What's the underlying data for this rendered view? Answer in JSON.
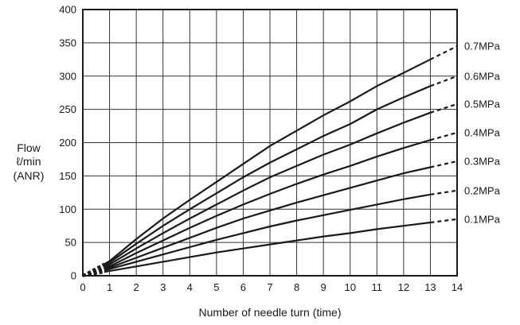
{
  "chart_data": {
    "type": "line",
    "title": "",
    "xlabel": "Number of needle turn (time)",
    "ylabel_lines": [
      "Flow",
      "ℓ/min",
      "(ANR)"
    ],
    "xlim": [
      0,
      14
    ],
    "ylim": [
      0,
      400
    ],
    "x_ticks": [
      0,
      1,
      2,
      3,
      4,
      5,
      6,
      7,
      8,
      9,
      10,
      11,
      12,
      13,
      14
    ],
    "y_ticks": [
      0,
      50,
      100,
      150,
      200,
      250,
      300,
      350,
      400
    ],
    "grid": true,
    "solid_x_range": [
      0.8,
      13
    ],
    "dashed_segments": "x 0–0.8 and x 13–14",
    "series": [
      {
        "name": "0.7MPa",
        "x": [
          0,
          1,
          2,
          3,
          4,
          5,
          6,
          7,
          8,
          9,
          10,
          11,
          12,
          13,
          14
        ],
        "y": [
          0,
          22,
          55,
          86,
          114,
          141,
          168,
          195,
          218,
          241,
          262,
          285,
          305,
          325,
          345
        ]
      },
      {
        "name": "0.6MPa",
        "x": [
          0,
          1,
          2,
          3,
          4,
          5,
          6,
          7,
          8,
          9,
          10,
          11,
          12,
          13,
          14
        ],
        "y": [
          0,
          20,
          48,
          75,
          100,
          124,
          148,
          170,
          190,
          210,
          228,
          250,
          268,
          285,
          300
        ]
      },
      {
        "name": "0.5MPa",
        "x": [
          0,
          1,
          2,
          3,
          4,
          5,
          6,
          7,
          8,
          9,
          10,
          11,
          12,
          13,
          14
        ],
        "y": [
          0,
          17,
          41,
          64,
          86,
          107,
          128,
          148,
          165,
          182,
          197,
          214,
          230,
          245,
          258
        ]
      },
      {
        "name": "0.4MPa",
        "x": [
          0,
          1,
          2,
          3,
          4,
          5,
          6,
          7,
          8,
          9,
          10,
          11,
          12,
          13,
          14
        ],
        "y": [
          0,
          14,
          34,
          53,
          72,
          90,
          107,
          123,
          138,
          152,
          165,
          179,
          192,
          204,
          215
        ]
      },
      {
        "name": "0.3MPa",
        "x": [
          0,
          1,
          2,
          3,
          4,
          5,
          6,
          7,
          8,
          9,
          10,
          11,
          12,
          13,
          14
        ],
        "y": [
          0,
          12,
          27,
          42,
          57,
          72,
          86,
          98,
          110,
          121,
          132,
          143,
          154,
          163,
          172
        ]
      },
      {
        "name": "0.2MPa",
        "x": [
          0,
          1,
          2,
          3,
          4,
          5,
          6,
          7,
          8,
          9,
          10,
          11,
          12,
          13,
          14
        ],
        "y": [
          0,
          10,
          21,
          32,
          43,
          54,
          64,
          74,
          83,
          91,
          99,
          107,
          115,
          122,
          128
        ]
      },
      {
        "name": "0.1MPa",
        "x": [
          0,
          1,
          2,
          3,
          4,
          5,
          6,
          7,
          8,
          9,
          10,
          11,
          12,
          13,
          14
        ],
        "y": [
          0,
          7,
          14,
          21,
          28,
          35,
          41,
          47,
          53,
          59,
          64,
          70,
          75,
          80,
          85
        ]
      }
    ]
  }
}
